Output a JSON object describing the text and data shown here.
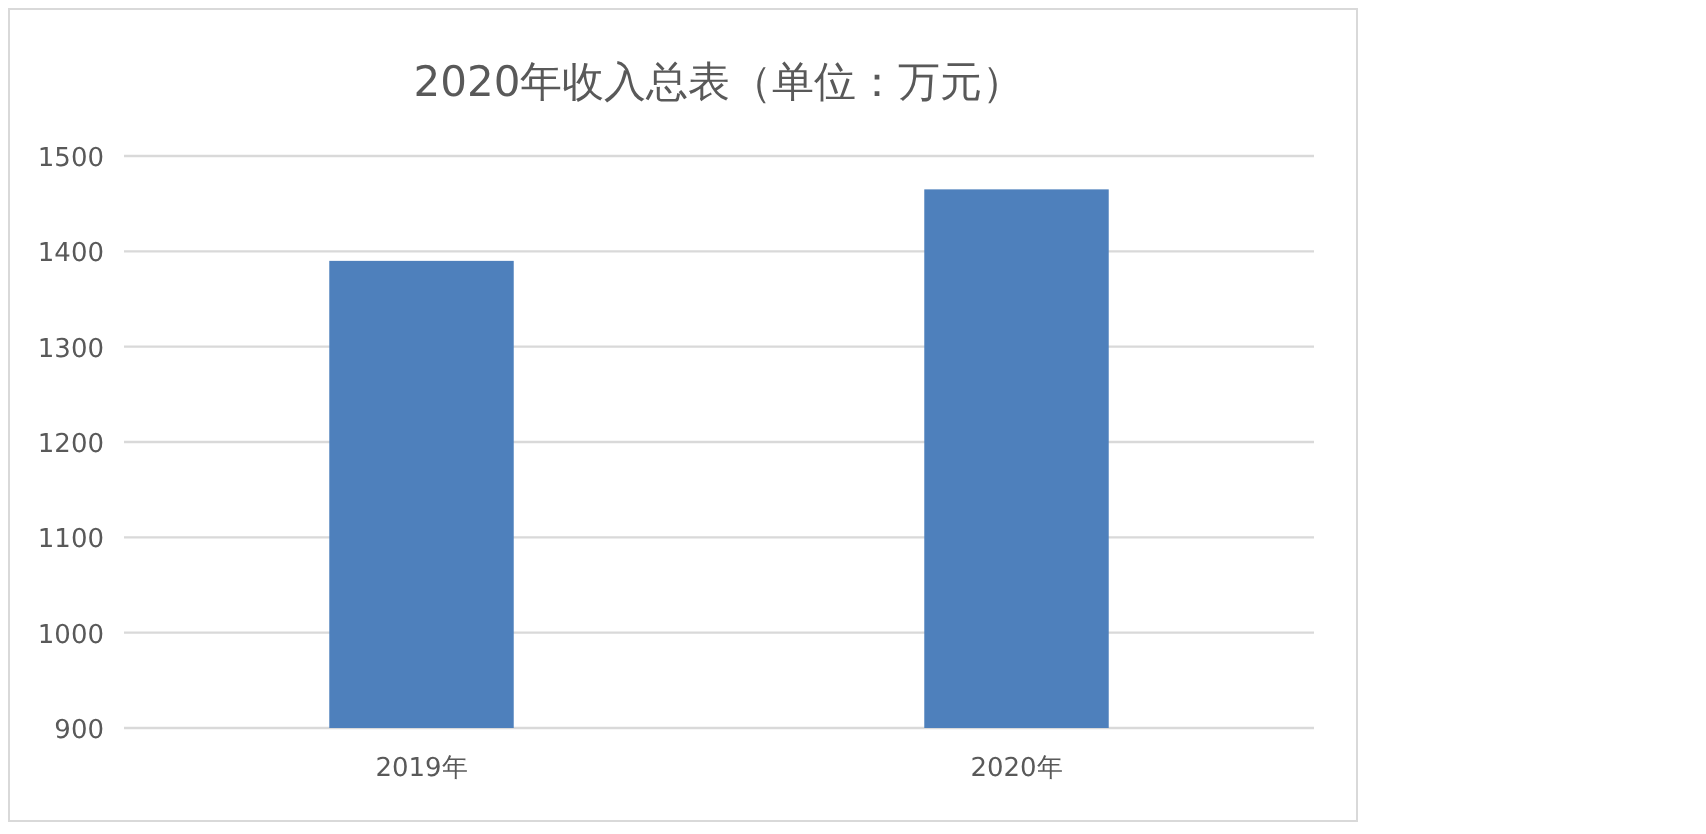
{
  "chart_data": {
    "type": "bar",
    "title": "2020年收入总表（单位：万元）",
    "categories": [
      "2019年",
      "2020年"
    ],
    "values": [
      1390,
      1465
    ],
    "color": "#4e80bc",
    "ylim": [
      900,
      1500
    ],
    "yticks": [
      900,
      1000,
      1100,
      1200,
      1300,
      1400,
      1500
    ],
    "grid": "y"
  }
}
